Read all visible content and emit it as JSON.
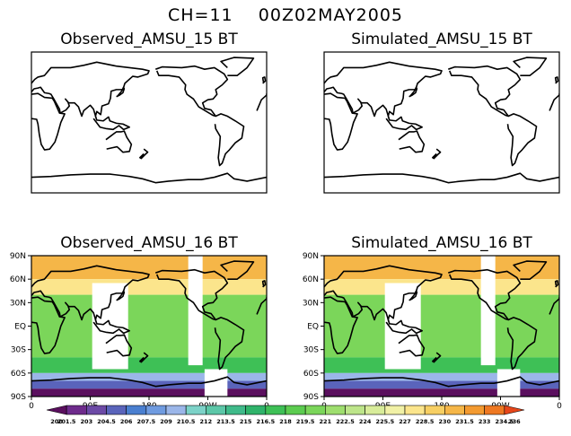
{
  "header": {
    "title": "CH=11    00Z02MAY2005"
  },
  "panels": [
    {
      "title": "Observed_AMSU_15 BT",
      "has_data": false
    },
    {
      "title": "Simulated_AMSU_15 BT",
      "has_data": false
    },
    {
      "title": "Observed_AMSU_16 BT",
      "has_data": true
    },
    {
      "title": "Simulated_AMSU_16 BT",
      "has_data": true
    }
  ],
  "axes": {
    "lat_labels": [
      "90N",
      "60N",
      "30N",
      "EQ",
      "30S",
      "60S",
      "90S"
    ],
    "lon_labels": [
      "0",
      "90E",
      "180",
      "90W",
      "0"
    ]
  },
  "colorbar": {
    "labels": [
      "200",
      "201.5",
      "203",
      "204.5",
      "206",
      "207.5",
      "209",
      "210.5",
      "212",
      "213.5",
      "215",
      "216.5",
      "218",
      "219.5",
      "221",
      "222.5",
      "224",
      "225.5",
      "227",
      "228.5",
      "230",
      "231.5",
      "233",
      "234.5",
      "236"
    ],
    "colors": [
      "#5a0f5e",
      "#6e2b8c",
      "#6c4aa6",
      "#5a64bb",
      "#4a7fd0",
      "#6f9be0",
      "#9bb6e9",
      "#7cd2c8",
      "#5cc7a8",
      "#3fba8a",
      "#2fb36a",
      "#3ec056",
      "#5ccc50",
      "#7bd65a",
      "#9ede6e",
      "#bde58a",
      "#d8ec9a",
      "#f1f1a6",
      "#fbe58c",
      "#f7cf63",
      "#f5b648",
      "#f39a30",
      "#ee7822",
      "#e6461a"
    ]
  },
  "chart_data": [
    {
      "type": "heatmap",
      "title": "Observed_AMSU_15 BT",
      "x_range": [
        0,
        360
      ],
      "y_range": [
        -90,
        90
      ],
      "data": "none"
    },
    {
      "type": "heatmap",
      "title": "Simulated_AMSU_15 BT",
      "x_range": [
        0,
        360
      ],
      "y_range": [
        -90,
        90
      ],
      "data": "none"
    },
    {
      "type": "heatmap",
      "title": "Observed_AMSU_16 BT",
      "x_range": [
        0,
        360
      ],
      "y_range": [
        -90,
        90
      ],
      "zones": [
        {
          "lat": [
            60,
            90
          ],
          "value": 230
        },
        {
          "lat": [
            40,
            60
          ],
          "value": 228
        },
        {
          "lat": [
            -40,
            40
          ],
          "value": 219.5
        },
        {
          "lat": [
            -60,
            -40
          ],
          "value": 216.5
        },
        {
          "lat": [
            -70,
            -60
          ],
          "value": 209
        },
        {
          "lat": [
            -80,
            -70
          ],
          "value": 204.5
        },
        {
          "lat": [
            -90,
            -80
          ],
          "value": 200
        }
      ]
    },
    {
      "type": "heatmap",
      "title": "Simulated_AMSU_16 BT",
      "x_range": [
        0,
        360
      ],
      "y_range": [
        -90,
        90
      ],
      "zones": [
        {
          "lat": [
            60,
            90
          ],
          "value": 230
        },
        {
          "lat": [
            40,
            60
          ],
          "value": 228
        },
        {
          "lat": [
            -40,
            40
          ],
          "value": 219.5
        },
        {
          "lat": [
            -60,
            -40
          ],
          "value": 216.5
        },
        {
          "lat": [
            -70,
            -60
          ],
          "value": 209
        },
        {
          "lat": [
            -80,
            -70
          ],
          "value": 204.5
        },
        {
          "lat": [
            -90,
            -80
          ],
          "value": 200
        }
      ]
    }
  ]
}
